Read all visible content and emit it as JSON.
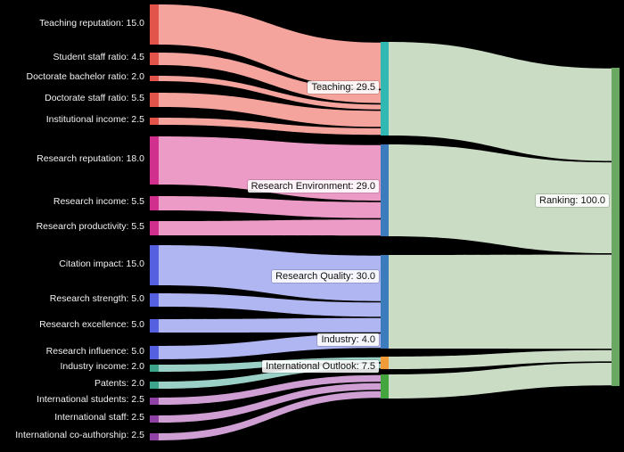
{
  "page": {
    "background_color": "#000000",
    "text_color": "#f2f2f2"
  },
  "chart_data": {
    "type": "sankey",
    "title": "",
    "legend": null,
    "groups": {
      "teaching_inputs": {
        "node_color": "#e2544a",
        "flow_color": "#f4a49d"
      },
      "research_env_inputs": {
        "node_color": "#d02f8d",
        "flow_color": "#ec9ac6"
      },
      "research_qual_inputs": {
        "node_color": "#5560e0",
        "flow_color": "#b0b6f2"
      },
      "industry_inputs": {
        "node_color": "#3da48b",
        "flow_color": "#9bd0c6"
      },
      "international_inputs": {
        "node_color": "#9043a5",
        "flow_color": "#cf9fd4"
      },
      "pillars_to_ranking": {
        "flow_color": "#cadcc4"
      }
    },
    "nodes": [
      {
        "id": "teaching_reputation",
        "name": "Teaching reputation",
        "value": 15.0,
        "column": 0,
        "color": "#e2544a",
        "flow_color": "#f4a49d"
      },
      {
        "id": "student_staff_ratio",
        "name": "Student staff ratio",
        "value": 4.5,
        "column": 0,
        "color": "#e2544a",
        "flow_color": "#f4a49d"
      },
      {
        "id": "doctorate_bachelor_ratio",
        "name": "Doctorate bachelor ratio",
        "value": 2.0,
        "column": 0,
        "color": "#e2544a",
        "flow_color": "#f4a49d"
      },
      {
        "id": "doctorate_staff_ratio",
        "name": "Doctorate staff ratio",
        "value": 5.5,
        "column": 0,
        "color": "#e2544a",
        "flow_color": "#f4a49d"
      },
      {
        "id": "institutional_income",
        "name": "Institutional income",
        "value": 2.5,
        "column": 0,
        "color": "#e2544a",
        "flow_color": "#f4a49d"
      },
      {
        "id": "research_reputation",
        "name": "Research reputation",
        "value": 18.0,
        "column": 0,
        "color": "#d02f8d",
        "flow_color": "#ec9ac6"
      },
      {
        "id": "research_income",
        "name": "Research income",
        "value": 5.5,
        "column": 0,
        "color": "#d02f8d",
        "flow_color": "#ec9ac6"
      },
      {
        "id": "research_productivity",
        "name": "Research productivity",
        "value": 5.5,
        "column": 0,
        "color": "#d02f8d",
        "flow_color": "#ec9ac6"
      },
      {
        "id": "citation_impact",
        "name": "Citation impact",
        "value": 15.0,
        "column": 0,
        "color": "#5560e0",
        "flow_color": "#b0b6f2"
      },
      {
        "id": "research_strength",
        "name": "Research strength",
        "value": 5.0,
        "column": 0,
        "color": "#5560e0",
        "flow_color": "#b0b6f2"
      },
      {
        "id": "research_excellence",
        "name": "Research excellence",
        "value": 5.0,
        "column": 0,
        "color": "#5560e0",
        "flow_color": "#b0b6f2"
      },
      {
        "id": "research_influence",
        "name": "Research influence",
        "value": 5.0,
        "column": 0,
        "color": "#5560e0",
        "flow_color": "#b0b6f2"
      },
      {
        "id": "industry_income",
        "name": "Industry income",
        "value": 2.0,
        "column": 0,
        "color": "#3da48b",
        "flow_color": "#9bd0c6"
      },
      {
        "id": "patents",
        "name": "Patents",
        "value": 2.0,
        "column": 0,
        "color": "#3da48b",
        "flow_color": "#9bd0c6"
      },
      {
        "id": "international_students",
        "name": "International students",
        "value": 2.5,
        "column": 0,
        "color": "#9043a5",
        "flow_color": "#cf9fd4"
      },
      {
        "id": "international_staff",
        "name": "International staff",
        "value": 2.5,
        "column": 0,
        "color": "#9043a5",
        "flow_color": "#cf9fd4"
      },
      {
        "id": "international_coauthorship",
        "name": "International co-authorship",
        "value": 2.5,
        "column": 0,
        "color": "#9043a5",
        "flow_color": "#cf9fd4"
      },
      {
        "id": "teaching",
        "name": "Teaching",
        "value": 29.5,
        "column": 1,
        "color": "#32b8b2",
        "flow_color": "#cadcc4"
      },
      {
        "id": "research_environment",
        "name": "Research Environment",
        "value": 29.0,
        "column": 1,
        "color": "#3c7cbd",
        "flow_color": "#cadcc4"
      },
      {
        "id": "research_quality",
        "name": "Research Quality",
        "value": 30.0,
        "column": 1,
        "color": "#3c7cbd",
        "flow_color": "#cadcc4"
      },
      {
        "id": "industry",
        "name": "Industry",
        "value": 4.0,
        "column": 1,
        "color": "#f09a38",
        "flow_color": "#cadcc4"
      },
      {
        "id": "international_outlook",
        "name": "International Outlook",
        "value": 7.5,
        "column": 1,
        "color": "#44a53f",
        "flow_color": "#cadcc4"
      },
      {
        "id": "ranking",
        "name": "Ranking",
        "value": 100.0,
        "column": 2,
        "color": "#6aa763",
        "flow_color": "#cadcc4"
      }
    ],
    "links": [
      {
        "source": "teaching_reputation",
        "target": "teaching",
        "value": 15.0
      },
      {
        "source": "student_staff_ratio",
        "target": "teaching",
        "value": 4.5
      },
      {
        "source": "doctorate_bachelor_ratio",
        "target": "teaching",
        "value": 2.0
      },
      {
        "source": "doctorate_staff_ratio",
        "target": "teaching",
        "value": 5.5
      },
      {
        "source": "institutional_income",
        "target": "teaching",
        "value": 2.5
      },
      {
        "source": "research_reputation",
        "target": "research_environment",
        "value": 18.0
      },
      {
        "source": "research_income",
        "target": "research_environment",
        "value": 5.5
      },
      {
        "source": "research_productivity",
        "target": "research_environment",
        "value": 5.5
      },
      {
        "source": "citation_impact",
        "target": "research_quality",
        "value": 15.0
      },
      {
        "source": "research_strength",
        "target": "research_quality",
        "value": 5.0
      },
      {
        "source": "research_excellence",
        "target": "research_quality",
        "value": 5.0
      },
      {
        "source": "research_influence",
        "target": "research_quality",
        "value": 5.0
      },
      {
        "source": "industry_income",
        "target": "industry",
        "value": 2.0
      },
      {
        "source": "patents",
        "target": "industry",
        "value": 2.0
      },
      {
        "source": "international_students",
        "target": "international_outlook",
        "value": 2.5
      },
      {
        "source": "international_staff",
        "target": "international_outlook",
        "value": 2.5
      },
      {
        "source": "international_coauthorship",
        "target": "international_outlook",
        "value": 2.5
      },
      {
        "source": "teaching",
        "target": "ranking",
        "value": 29.5
      },
      {
        "source": "research_environment",
        "target": "ranking",
        "value": 29.0
      },
      {
        "source": "research_quality",
        "target": "ranking",
        "value": 30.0
      },
      {
        "source": "industry",
        "target": "ranking",
        "value": 4.0
      },
      {
        "source": "international_outlook",
        "target": "ranking",
        "value": 7.5
      }
    ]
  }
}
